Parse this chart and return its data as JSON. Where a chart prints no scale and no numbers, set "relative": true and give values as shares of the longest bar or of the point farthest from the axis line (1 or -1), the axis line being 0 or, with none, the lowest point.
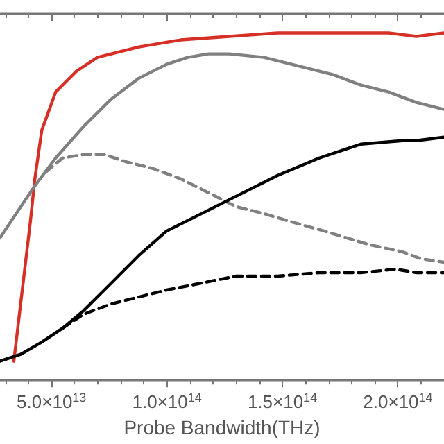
{
  "chart_data": {
    "type": "line",
    "xlabel": "Probe Bandwidth(THz)",
    "relative": true,
    "marker": "none",
    "grid": false,
    "xlim": [
      27700000000000.0,
      220000000000000.0
    ],
    "xticks": [
      {
        "value": 50000000000000.0,
        "label": "5.0×10$^{13}$"
      },
      {
        "value": 100000000000000.0,
        "label": "1.0×10$^{14}$"
      },
      {
        "value": 150000000000000.0,
        "label": "1.5×10$^{14}$"
      },
      {
        "value": 200000000000000.0,
        "label": "2.0×10$^{14}$"
      }
    ],
    "series": [
      {
        "color": "#d62f26",
        "line_style": "solid",
        "x": [
          33700000000000.0,
          40900000000000.0,
          42800000000000.0,
          45800000000000.0,
          51800000000000.0,
          60800000000000.0,
          69900000000000.0,
          87900000000000.0,
          106000000000000.0,
          127000000000000.0,
          148000000000000.0,
          172000000000000.0,
          196000000000000.0,
          208000000000000.0,
          220000000000000.0
        ],
        "values": [
          0.055,
          0.46,
          0.58,
          0.72,
          0.83,
          0.89,
          0.93,
          0.96,
          0.98,
          0.99,
          1.0,
          1.0,
          1.0,
          0.99,
          1.0
        ]
      },
      {
        "color": "#808080",
        "line_style": "solid",
        "x": [
          27700000000000.0,
          33700000000000.0,
          42800000000000.0,
          51800000000000.0,
          63800000000000.0,
          75900000000000.0,
          87900000000000.0,
          99900000000000.0,
          109000000000000.0,
          118000000000000.0,
          127000000000000.0,
          142000000000000.0,
          154000000000000.0,
          172000000000000.0,
          184000000000000.0,
          196000000000000.0,
          208000000000000.0,
          220000000000000.0
        ],
        "values": [
          0.41,
          0.47,
          0.56,
          0.64,
          0.73,
          0.81,
          0.87,
          0.91,
          0.93,
          0.94,
          0.94,
          0.93,
          0.91,
          0.88,
          0.85,
          0.83,
          0.8,
          0.78
        ]
      },
      {
        "color": "#808080",
        "line_style": "dashed",
        "x": [
          47600000000000.0,
          54800000000000.0,
          63800000000000.0,
          72900000000000.0,
          81900000000000.0,
          93900000000000.0,
          106000000000000.0,
          118000000000000.0,
          130000000000000.0,
          142000000000000.0,
          152000000000000.0,
          168000000000000.0,
          188000000000000.0,
          202000000000000.0,
          210000000000000.0,
          220000000000000.0
        ],
        "values": [
          0.6,
          0.64,
          0.65,
          0.65,
          0.63,
          0.61,
          0.58,
          0.54,
          0.5,
          0.48,
          0.46,
          0.43,
          0.39,
          0.37,
          0.35,
          0.34
        ]
      },
      {
        "color": "#000000",
        "line_style": "solid",
        "x": [
          27700000000000.0,
          36700000000000.0,
          45800000000000.0,
          54800000000000.0,
          63800000000000.0,
          75900000000000.0,
          87900000000000.0,
          99900000000000.0,
          115000000000000.0,
          130000000000000.0,
          148000000000000.0,
          166000000000000.0,
          184000000000000.0,
          202000000000000.0,
          208000000000000.0,
          220000000000000.0
        ],
        "values": [
          0.055,
          0.075,
          0.11,
          0.15,
          0.2,
          0.28,
          0.36,
          0.43,
          0.48,
          0.53,
          0.59,
          0.64,
          0.68,
          0.69,
          0.69,
          0.7
        ]
      },
      {
        "color": "#000000",
        "line_style": "dashed",
        "x": [
          54800000000000.0,
          63800000000000.0,
          75900000000000.0,
          87900000000000.0,
          99900000000000.0,
          115000000000000.0,
          130000000000000.0,
          148000000000000.0,
          166000000000000.0,
          184000000000000.0,
          199000000000000.0,
          208000000000000.0,
          220000000000000.0
        ],
        "values": [
          0.15,
          0.19,
          0.22,
          0.24,
          0.26,
          0.28,
          0.3,
          0.3,
          0.31,
          0.31,
          0.32,
          0.31,
          0.31
        ]
      }
    ]
  }
}
